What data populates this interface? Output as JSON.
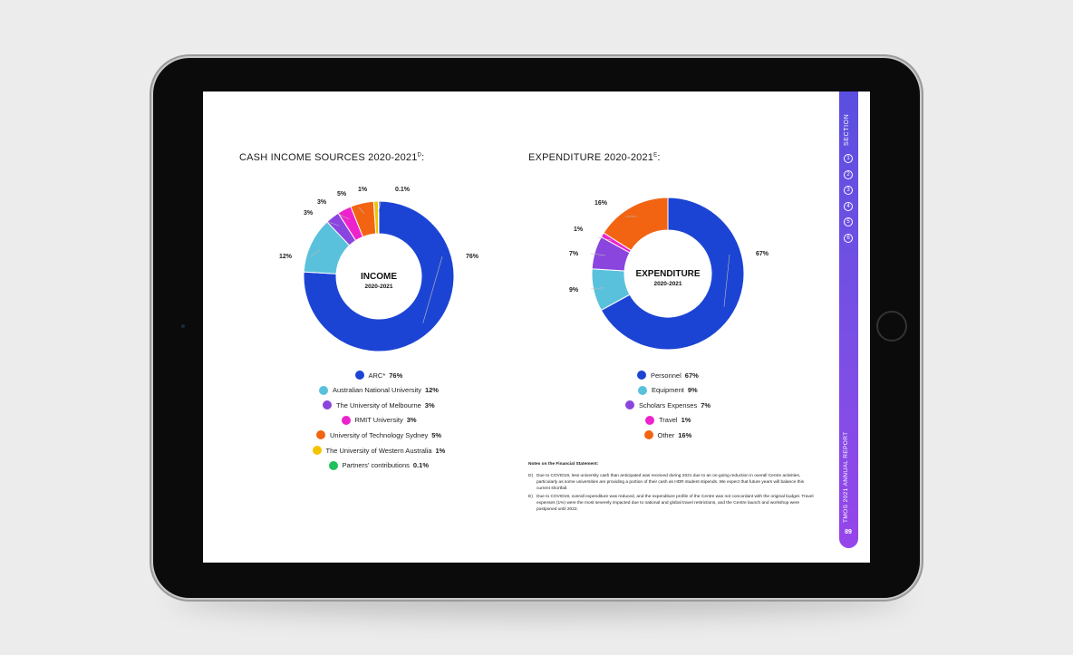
{
  "page": {
    "section_label": "SECTION",
    "section_numbers": [
      "1",
      "2",
      "3",
      "4",
      "5",
      "6"
    ],
    "report_label": "TMOS 2021 ANNUAL REPORT",
    "page_number": "89"
  },
  "income": {
    "title": "CASH INCOME SOURCES 2020-2021",
    "title_sup": "D",
    "title_suffix": ":",
    "center_title": "INCOME",
    "center_sub": "2020-2021"
  },
  "expenditure": {
    "title": "EXPENDITURE 2020-2021",
    "title_sup": "E",
    "title_suffix": ":",
    "center_title": "EXPENDITURE",
    "center_sub": "2020-2021"
  },
  "notes": {
    "heading": "Notes on the Financial Statement:",
    "items": [
      {
        "key": "D)",
        "text": "Due to COVID19, less university cash than anticipated was received during 2021 due to an on-going reduction in overall Centre activities, particularly as some universities are providing a portion of their cash as HDR student stipends. We expect that future years will balance this current shortfall."
      },
      {
        "key": "E)",
        "text": "Due to COVID19, overall expenditure was reduced, and the expenditure profile of the Centre was not concordant with the original budget. Travel expenses (1%) were the most severely impacted due to national and global travel restrictions, and the Centre launch and workshop were postponed until 2022."
      }
    ]
  },
  "chart_data": [
    {
      "type": "pie",
      "title": "CASH INCOME SOURCES 2020-2021",
      "categories": [
        "ARC*",
        "Australian National University",
        "The University of Melbourne",
        "RMIT University",
        "University of Technology Sydney",
        "The University of Western Australia",
        "Partners' contributions"
      ],
      "values": [
        76,
        12,
        3,
        3,
        5,
        1,
        0.1
      ],
      "labels": [
        "76%",
        "12%",
        "3%",
        "3%",
        "5%",
        "1%",
        "0.1%"
      ],
      "colors": [
        "#1c44d4",
        "#5ac1dc",
        "#8a45de",
        "#ee22cc",
        "#f26412",
        "#f5c400",
        "#1fc15a"
      ]
    },
    {
      "type": "pie",
      "title": "EXPENDITURE 2020-2021",
      "categories": [
        "Personnel",
        "Equipment",
        "Scholars Expenses",
        "Travel",
        "Other"
      ],
      "values": [
        67,
        9,
        7,
        1,
        16
      ],
      "labels": [
        "67%",
        "9%",
        "7%",
        "1%",
        "16%"
      ],
      "colors": [
        "#1c44d4",
        "#5ac1dc",
        "#8a45de",
        "#ee22cc",
        "#f26412"
      ]
    }
  ]
}
